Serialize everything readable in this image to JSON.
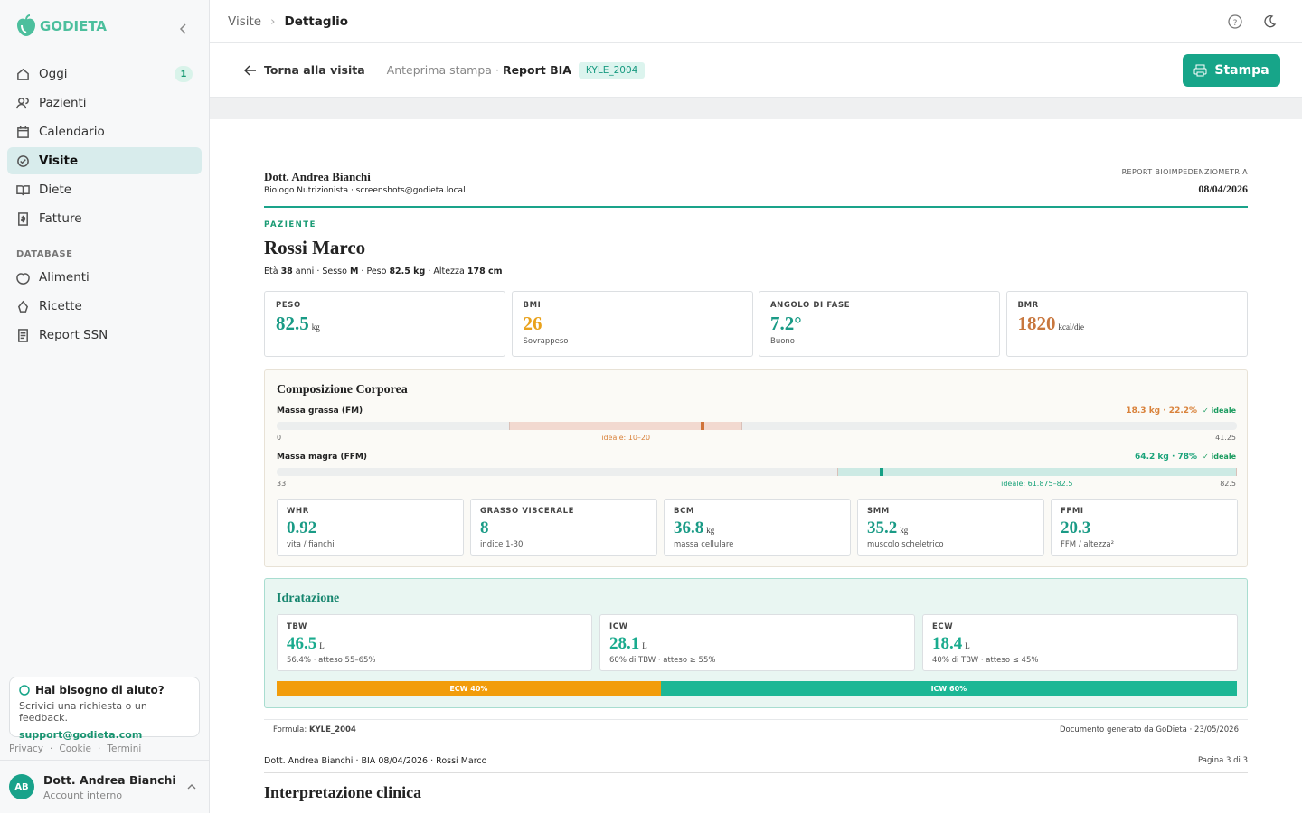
{
  "sidebar": {
    "brand": "GODIETA",
    "nav": [
      {
        "label": "Oggi",
        "badge": "1"
      },
      {
        "label": "Pazienti"
      },
      {
        "label": "Calendario"
      },
      {
        "label": "Visite"
      },
      {
        "label": "Diete"
      },
      {
        "label": "Fatture"
      }
    ],
    "section": "DATABASE",
    "db": [
      {
        "label": "Alimenti"
      },
      {
        "label": "Ricette"
      },
      {
        "label": "Report SSN"
      }
    ],
    "help": {
      "title": "Hai bisogno di aiuto?",
      "text": "Scrivici una richiesta o un feedback.",
      "email": "support@godieta.com"
    },
    "links": [
      "Privacy",
      "Cookie",
      "Termini"
    ],
    "user": {
      "initials": "AB",
      "name": "Dott. Andrea Bianchi",
      "role": "Account interno"
    }
  },
  "topbar": {
    "crumbs": [
      "Visite",
      "Dettaglio"
    ]
  },
  "toolbar": {
    "back": "Torna alla visita",
    "preview": "Anteprima stampa",
    "sep": "·",
    "report": "Report BIA",
    "tag": "KYLE_2004",
    "print": "Stampa"
  },
  "report": {
    "doctor": "Dott. Andrea Bianchi",
    "doctor_sub": "Biologo Nutrizionista · screenshots@godieta.local",
    "kind": "REPORT BIOIMPEDENZIOMETRIA",
    "date": "08/04/2026",
    "patient_label": "PAZIENTE",
    "patient": "Rossi Marco",
    "details": [
      {
        "label": "Età",
        "value": "38",
        "unit": "anni"
      },
      {
        "label": "Sesso",
        "value": "M"
      },
      {
        "label": "Peso",
        "value": "82.5 kg"
      },
      {
        "label": "Altezza",
        "value": "178 cm"
      }
    ],
    "cards": [
      {
        "label": "PESO",
        "value": "82.5",
        "unit": "kg",
        "color": "#1a9b86"
      },
      {
        "label": "BMI",
        "value": "26",
        "note": "Sovrappeso",
        "color": "#e9a21c"
      },
      {
        "label": "ANGOLO DI FASE",
        "value": "7.2°",
        "note": "Buono",
        "color": "#1a9b86"
      },
      {
        "label": "BMR",
        "value": "1820",
        "unit": "kcal/die",
        "color": "#c8773e"
      }
    ],
    "composition": {
      "title": "Composizione Corporea",
      "bars": [
        {
          "name": "Massa grassa (FM)",
          "value": 18.3,
          "value_label": "18.3 kg · 22.2%",
          "status": "✓ ideale",
          "min": 0,
          "max": 41.25,
          "ideal": {
            "label": "ideale: 10–20",
            "low": 10,
            "high": 20
          },
          "color": "#d9823b",
          "band": "#f2d9d0",
          "marker": "#d0733a"
        },
        {
          "name": "Massa magra (FFM)",
          "value": 64.2,
          "value_label": "64.2 kg · 78%",
          "status": "✓ ideale",
          "min": 33,
          "max": 82.5,
          "ideal": {
            "label": "ideale: 61.875–82.5",
            "low": 61.875,
            "high": 82.5
          },
          "color": "#1aa37a",
          "band": "#cdeae4",
          "marker": "#16a085"
        }
      ],
      "metrics": [
        {
          "label": "WHR",
          "value": "0.92",
          "note": "vita / fianchi"
        },
        {
          "label": "GRASSO VISCERALE",
          "value": "8",
          "note": "indice 1-30"
        },
        {
          "label": "BCM",
          "value": "36.8",
          "unit": "kg",
          "note": "massa cellulare"
        },
        {
          "label": "SMM",
          "value": "35.2",
          "unit": "kg",
          "note": "muscolo scheletrico"
        },
        {
          "label": "FFMI",
          "value": "20.3",
          "note": "FFM / altezza²"
        }
      ]
    },
    "hydration": {
      "title": "Idratazione",
      "cards": [
        {
          "label": "TBW",
          "value": "46.5",
          "unit": "L",
          "note": "56.4% · atteso 55–65%"
        },
        {
          "label": "ICW",
          "value": "28.1",
          "unit": "L",
          "note": "60% di TBW · atteso ≥ 55%"
        },
        {
          "label": "ECW",
          "value": "18.4",
          "unit": "L",
          "note": "40% di TBW · atteso ≤ 45%"
        }
      ],
      "split": [
        {
          "label": "ECW 40%",
          "value": 40,
          "color": "#f29d0b"
        },
        {
          "label": "ICW 60%",
          "value": 60,
          "color": "#1cb795"
        }
      ]
    },
    "formula_label": "Formula:",
    "formula": "KYLE_2004",
    "generated": "Documento generato da GoDieta · 23/05/2026",
    "page_footer": "Dott. Andrea Bianchi · BIA 08/04/2026 · Rossi Marco",
    "page_num": "Pagina 3 di 3",
    "next_title": "Interpretazione clinica"
  }
}
